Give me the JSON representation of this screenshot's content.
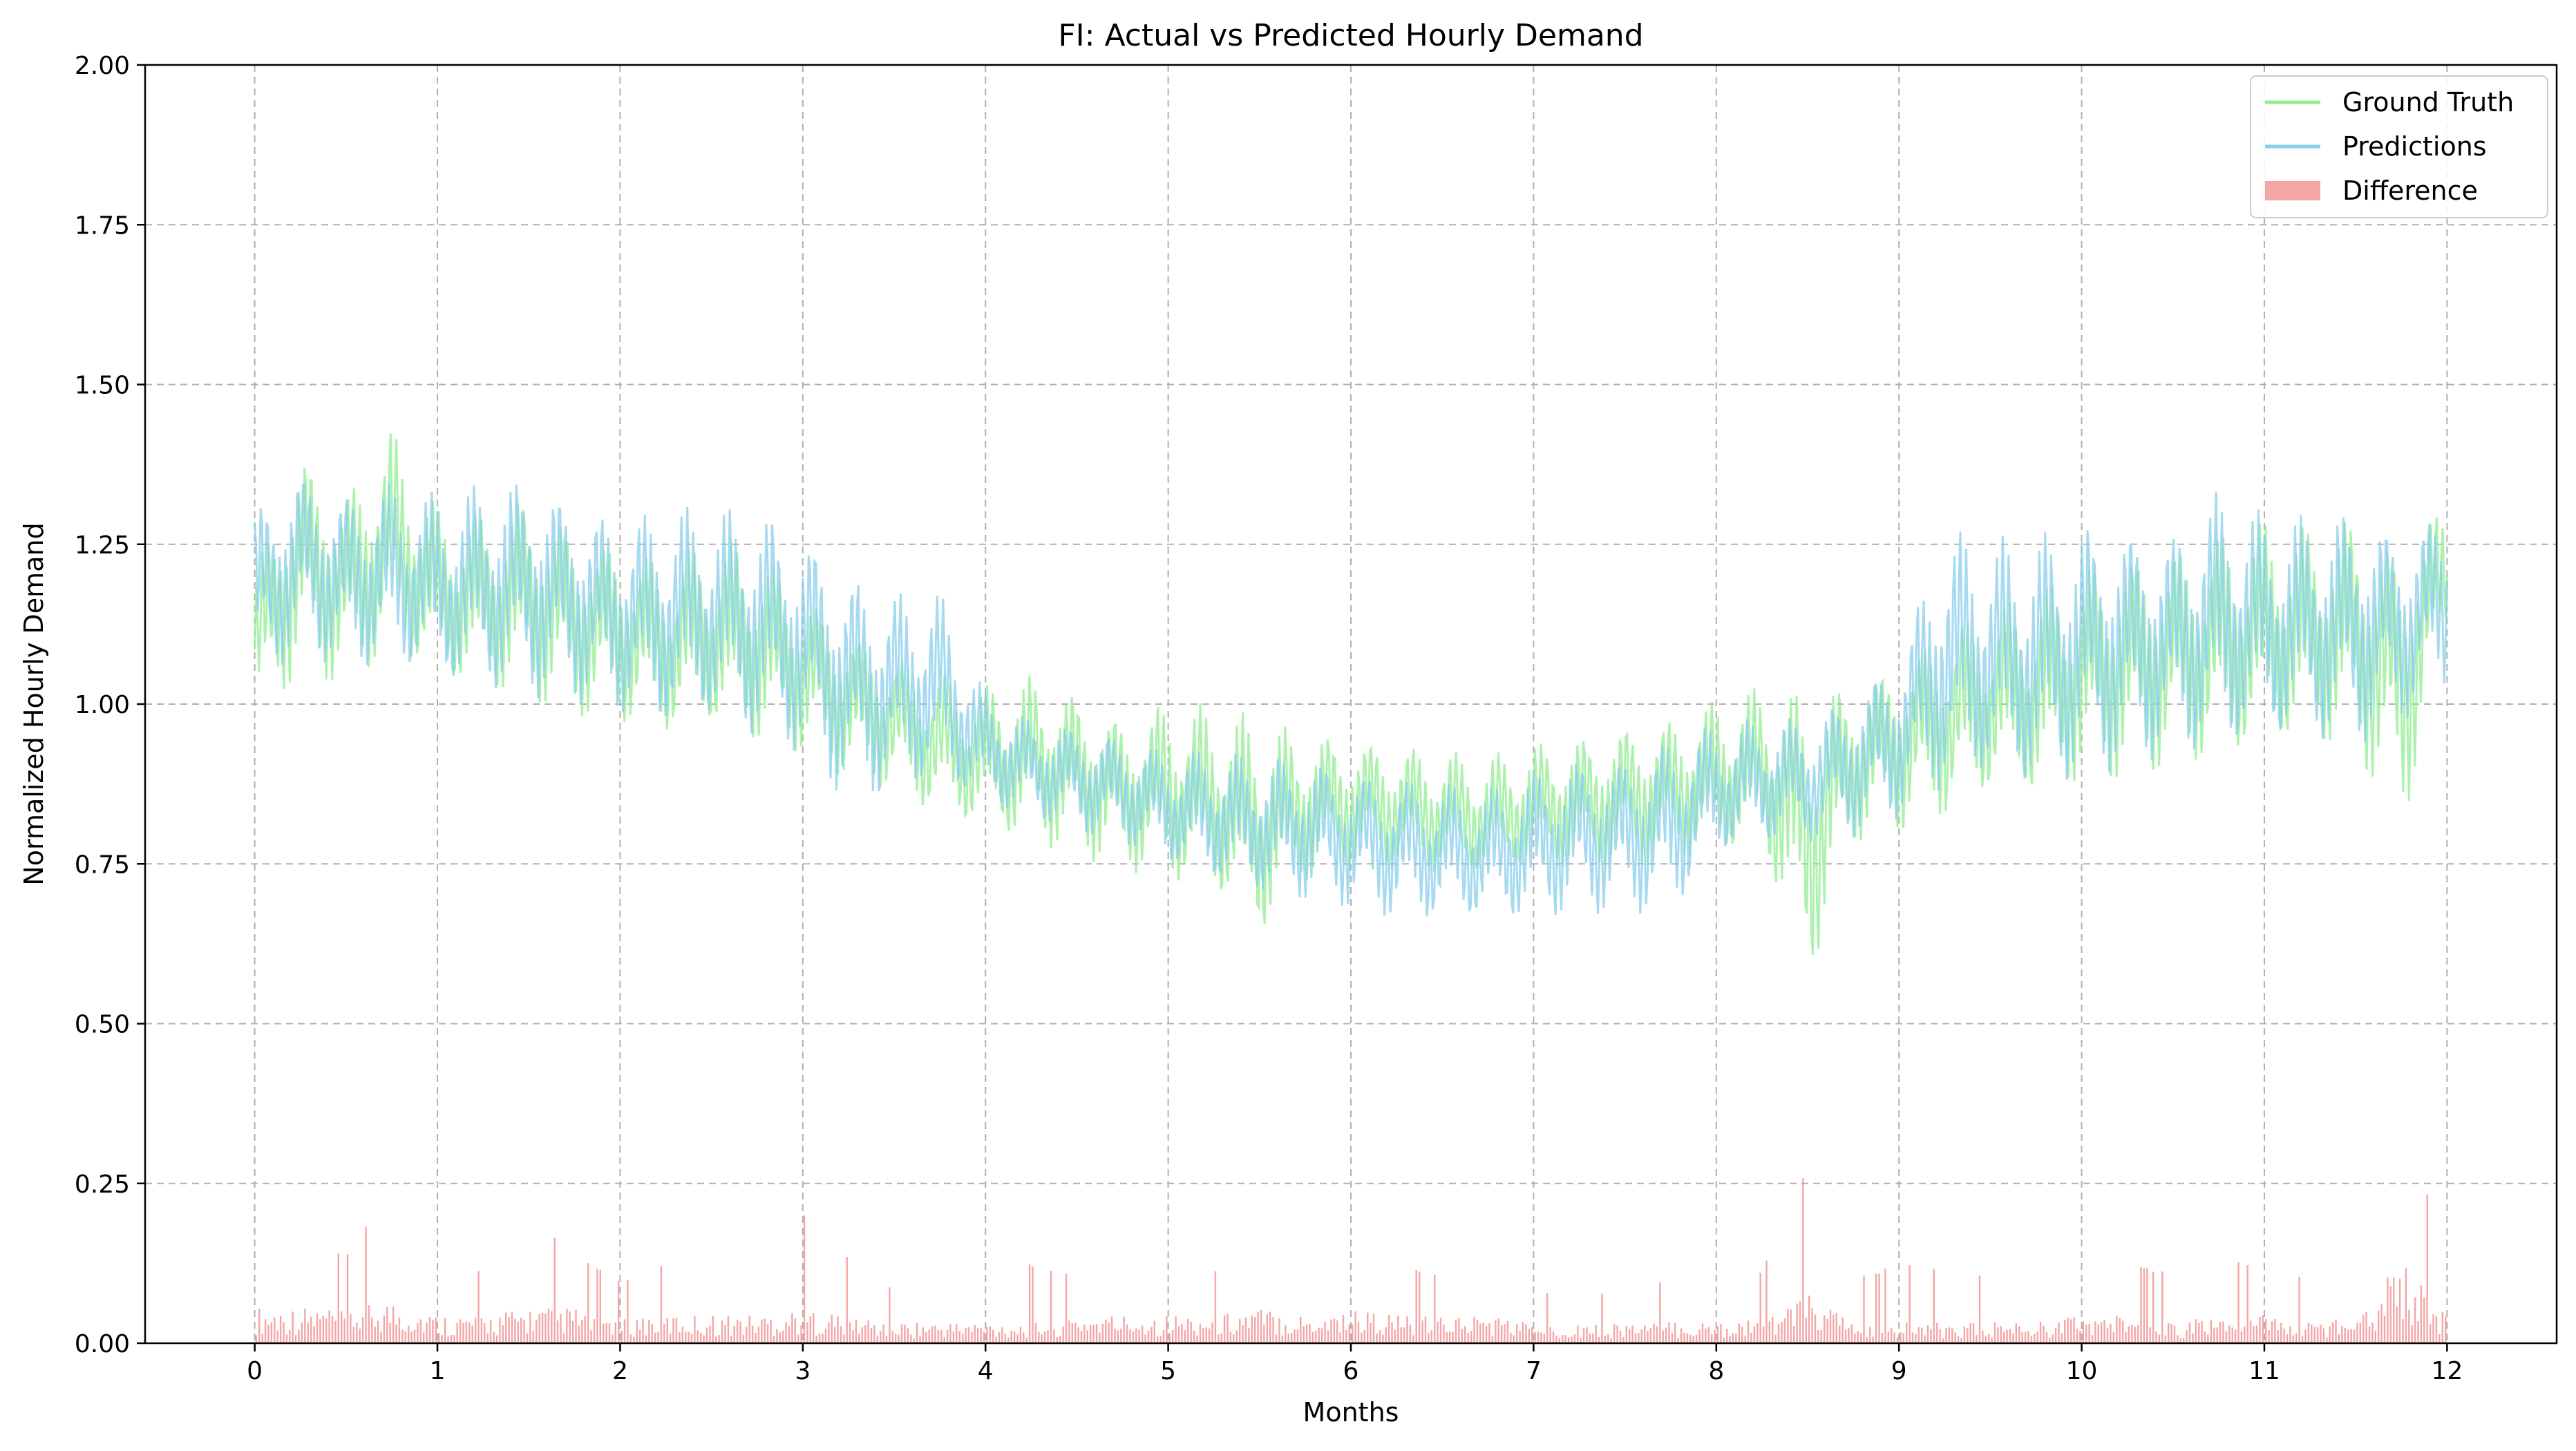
{
  "chart_data": {
    "type": "line",
    "title": "FI: Actual vs Predicted Hourly Demand",
    "xlabel": "Months",
    "ylabel": "Normalized Hourly Demand",
    "xlim": [
      -0.6,
      12.6
    ],
    "ylim": [
      0,
      2
    ],
    "x_ticks": [
      "0",
      "1",
      "2",
      "3",
      "4",
      "5",
      "6",
      "7",
      "8",
      "9",
      "10",
      "11",
      "12"
    ],
    "y_ticks": [
      "0.00",
      "0.25",
      "0.50",
      "0.75",
      "1.00",
      "1.25",
      "1.50",
      "1.75",
      "2.00"
    ],
    "grid": true,
    "legend_position": "upper right",
    "x_points_months": [
      0.0,
      0.25,
      0.5,
      0.75,
      1.0,
      1.25,
      1.5,
      1.75,
      2.0,
      2.25,
      2.5,
      2.75,
      3.0,
      3.25,
      3.5,
      3.75,
      4.0,
      4.25,
      4.5,
      4.75,
      5.0,
      5.25,
      5.5,
      5.75,
      6.0,
      6.25,
      6.5,
      6.75,
      7.0,
      7.25,
      7.5,
      7.75,
      8.0,
      8.25,
      8.5,
      8.75,
      9.0,
      9.25,
      9.5,
      9.75,
      10.0,
      10.25,
      10.5,
      10.75,
      11.0,
      11.25,
      11.5,
      11.75,
      12.0
    ],
    "series": [
      {
        "name": "Ground Truth",
        "color": "#90ee90",
        "upper": [
          1.22,
          1.4,
          1.34,
          1.44,
          1.31,
          1.3,
          1.33,
          1.28,
          1.25,
          1.23,
          1.26,
          1.25,
          1.18,
          1.12,
          1.08,
          1.05,
          1.03,
          1.05,
          1.02,
          0.98,
          1.01,
          1.0,
          0.98,
          0.96,
          0.95,
          0.94,
          0.93,
          0.92,
          0.94,
          0.95,
          0.97,
          0.98,
          1.01,
          1.03,
          1.02,
          1.04,
          1.07,
          1.12,
          1.15,
          1.18,
          1.22,
          1.24,
          1.25,
          1.27,
          1.29,
          1.28,
          1.3,
          1.25,
          1.33
        ],
        "lower": [
          0.95,
          1.05,
          1.02,
          1.08,
          1.03,
          1.02,
          1.0,
          0.98,
          0.97,
          0.95,
          0.96,
          0.93,
          0.92,
          0.88,
          0.86,
          0.82,
          0.8,
          0.78,
          0.76,
          0.74,
          0.72,
          0.7,
          0.63,
          0.72,
          0.74,
          0.74,
          0.73,
          0.73,
          0.74,
          0.74,
          0.74,
          0.75,
          0.76,
          0.77,
          0.55,
          0.78,
          0.8,
          0.82,
          0.86,
          0.85,
          0.87,
          0.88,
          0.9,
          0.91,
          0.93,
          0.93,
          0.92,
          0.79,
          1.12
        ]
      },
      {
        "name": "Predictions",
        "color": "#87ceeb",
        "upper": [
          1.31,
          1.37,
          1.33,
          1.35,
          1.33,
          1.35,
          1.36,
          1.32,
          1.29,
          1.31,
          1.31,
          1.31,
          1.27,
          1.21,
          1.18,
          1.18,
          1.02,
          0.98,
          0.97,
          0.95,
          0.93,
          0.93,
          0.92,
          0.92,
          0.9,
          0.89,
          0.88,
          0.87,
          0.9,
          0.92,
          0.92,
          0.95,
          0.97,
          0.98,
          0.98,
          1.02,
          1.08,
          1.28,
          1.26,
          1.27,
          1.29,
          1.28,
          1.27,
          1.34,
          1.3,
          1.3,
          1.31,
          1.27,
          1.31
        ],
        "lower": [
          1.03,
          1.08,
          1.05,
          1.06,
          1.03,
          1.02,
          1.01,
          1.0,
          0.98,
          0.96,
          0.97,
          0.94,
          0.92,
          0.84,
          0.86,
          0.87,
          0.84,
          0.82,
          0.8,
          0.78,
          0.75,
          0.72,
          0.7,
          0.69,
          0.68,
          0.66,
          0.66,
          0.66,
          0.66,
          0.67,
          0.67,
          0.67,
          0.76,
          0.78,
          0.78,
          0.79,
          0.82,
          0.86,
          0.88,
          0.86,
          0.88,
          0.9,
          0.92,
          0.92,
          0.94,
          0.94,
          0.93,
          0.97,
          1.02
        ]
      },
      {
        "name": "Difference",
        "color": "#f08080",
        "peak": [
          0.27,
          0.15,
          0.13,
          0.24,
          0.11,
          0.11,
          0.2,
          0.14,
          0.09,
          0.12,
          0.11,
          0.13,
          0.2,
          0.13,
          0.08,
          0.09,
          0.12,
          0.12,
          0.1,
          0.12,
          0.12,
          0.11,
          0.15,
          0.09,
          0.13,
          0.12,
          0.1,
          0.09,
          0.08,
          0.07,
          0.08,
          0.1,
          0.12,
          0.11,
          0.27,
          0.1,
          0.12,
          0.11,
          0.1,
          0.11,
          0.13,
          0.12,
          0.11,
          0.13,
          0.12,
          0.1,
          0.11,
          0.34,
          0.15
        ],
        "typical": [
          0.05,
          0.05,
          0.05,
          0.06,
          0.04,
          0.04,
          0.05,
          0.05,
          0.04,
          0.04,
          0.04,
          0.04,
          0.05,
          0.04,
          0.03,
          0.03,
          0.03,
          0.03,
          0.04,
          0.04,
          0.04,
          0.04,
          0.05,
          0.04,
          0.05,
          0.04,
          0.04,
          0.04,
          0.03,
          0.03,
          0.03,
          0.03,
          0.03,
          0.04,
          0.07,
          0.03,
          0.03,
          0.03,
          0.03,
          0.03,
          0.04,
          0.04,
          0.03,
          0.04,
          0.04,
          0.03,
          0.04,
          0.12,
          0.04
        ]
      }
    ],
    "legend": [
      "Ground Truth",
      "Predictions",
      "Difference"
    ]
  }
}
